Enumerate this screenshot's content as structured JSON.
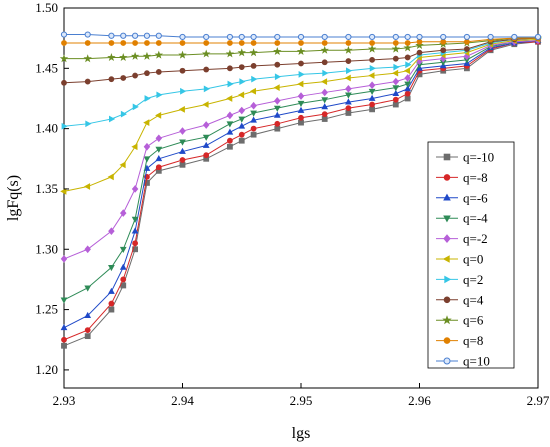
{
  "chart_data": {
    "type": "line",
    "title": "",
    "xlabel": "lgs",
    "ylabel": "lgFq(s)",
    "xlim": [
      2.93,
      2.97
    ],
    "ylim": [
      1.185,
      1.5
    ],
    "xticks": [
      "2.93",
      "2.94",
      "2.95",
      "2.96",
      "2.97"
    ],
    "yticks": [
      "1.20",
      "1.25",
      "1.30",
      "1.35",
      "1.40",
      "1.45",
      "1.50"
    ],
    "legend_position": "right",
    "series": [
      {
        "name": "q=-10",
        "color": "#6d6d6d",
        "marker": "square",
        "x": [
          2.93,
          2.932,
          2.934,
          2.935,
          2.936,
          2.937,
          2.938,
          2.94,
          2.942,
          2.944,
          2.945,
          2.946,
          2.948,
          2.95,
          2.952,
          2.954,
          2.956,
          2.958,
          2.959,
          2.96,
          2.962,
          2.964,
          2.966,
          2.968,
          2.97
        ],
        "y": [
          1.22,
          1.228,
          1.25,
          1.27,
          1.3,
          1.355,
          1.365,
          1.37,
          1.375,
          1.385,
          1.39,
          1.395,
          1.4,
          1.405,
          1.408,
          1.413,
          1.416,
          1.42,
          1.425,
          1.445,
          1.448,
          1.45,
          1.465,
          1.47,
          1.472
        ]
      },
      {
        "name": "q=-8",
        "color": "#d62728",
        "marker": "circle",
        "x": [
          2.93,
          2.932,
          2.934,
          2.935,
          2.936,
          2.937,
          2.938,
          2.94,
          2.942,
          2.944,
          2.945,
          2.946,
          2.948,
          2.95,
          2.952,
          2.954,
          2.956,
          2.958,
          2.959,
          2.96,
          2.962,
          2.964,
          2.966,
          2.968,
          2.97
        ],
        "y": [
          1.225,
          1.233,
          1.255,
          1.275,
          1.305,
          1.36,
          1.368,
          1.374,
          1.378,
          1.39,
          1.395,
          1.4,
          1.404,
          1.409,
          1.412,
          1.417,
          1.42,
          1.424,
          1.429,
          1.448,
          1.45,
          1.452,
          1.466,
          1.471,
          1.472
        ]
      },
      {
        "name": "q=-6",
        "color": "#1f49c8",
        "marker": "triangle-up",
        "x": [
          2.93,
          2.932,
          2.934,
          2.935,
          2.936,
          2.937,
          2.938,
          2.94,
          2.942,
          2.944,
          2.945,
          2.946,
          2.948,
          2.95,
          2.952,
          2.954,
          2.956,
          2.958,
          2.959,
          2.96,
          2.962,
          2.964,
          2.966,
          2.968,
          2.97
        ],
        "y": [
          1.235,
          1.245,
          1.265,
          1.285,
          1.315,
          1.367,
          1.375,
          1.381,
          1.386,
          1.397,
          1.402,
          1.407,
          1.411,
          1.415,
          1.418,
          1.422,
          1.425,
          1.429,
          1.433,
          1.45,
          1.452,
          1.454,
          1.467,
          1.471,
          1.473
        ]
      },
      {
        "name": "q=-4",
        "color": "#2e8b57",
        "marker": "triangle-down",
        "x": [
          2.93,
          2.932,
          2.934,
          2.935,
          2.936,
          2.937,
          2.938,
          2.94,
          2.942,
          2.944,
          2.945,
          2.946,
          2.948,
          2.95,
          2.952,
          2.954,
          2.956,
          2.958,
          2.959,
          2.96,
          2.962,
          2.964,
          2.966,
          2.968,
          2.97
        ],
        "y": [
          1.258,
          1.268,
          1.285,
          1.3,
          1.325,
          1.375,
          1.383,
          1.389,
          1.393,
          1.404,
          1.408,
          1.413,
          1.417,
          1.421,
          1.424,
          1.428,
          1.431,
          1.434,
          1.437,
          1.453,
          1.455,
          1.457,
          1.468,
          1.472,
          1.473
        ]
      },
      {
        "name": "q=-2",
        "color": "#b65fd8",
        "marker": "diamond",
        "x": [
          2.93,
          2.932,
          2.934,
          2.935,
          2.936,
          2.937,
          2.938,
          2.94,
          2.942,
          2.944,
          2.945,
          2.946,
          2.948,
          2.95,
          2.952,
          2.954,
          2.956,
          2.958,
          2.959,
          2.96,
          2.962,
          2.964,
          2.966,
          2.968,
          2.97
        ],
        "y": [
          1.292,
          1.3,
          1.315,
          1.33,
          1.35,
          1.385,
          1.392,
          1.398,
          1.403,
          1.411,
          1.415,
          1.419,
          1.423,
          1.427,
          1.43,
          1.433,
          1.436,
          1.439,
          1.442,
          1.456,
          1.458,
          1.46,
          1.469,
          1.472,
          1.473
        ]
      },
      {
        "name": "q=0",
        "color": "#c8b400",
        "marker": "triangle-left",
        "x": [
          2.93,
          2.932,
          2.934,
          2.935,
          2.936,
          2.937,
          2.938,
          2.94,
          2.942,
          2.944,
          2.945,
          2.946,
          2.948,
          2.95,
          2.952,
          2.954,
          2.956,
          2.958,
          2.959,
          2.96,
          2.962,
          2.964,
          2.966,
          2.968,
          2.97
        ],
        "y": [
          1.348,
          1.352,
          1.36,
          1.37,
          1.385,
          1.405,
          1.411,
          1.416,
          1.42,
          1.425,
          1.428,
          1.431,
          1.434,
          1.437,
          1.439,
          1.442,
          1.444,
          1.446,
          1.448,
          1.459,
          1.461,
          1.463,
          1.47,
          1.473,
          1.474
        ]
      },
      {
        "name": "q=2",
        "color": "#35c6e6",
        "marker": "triangle-right",
        "x": [
          2.93,
          2.932,
          2.934,
          2.935,
          2.936,
          2.937,
          2.938,
          2.94,
          2.942,
          2.944,
          2.945,
          2.946,
          2.948,
          2.95,
          2.952,
          2.954,
          2.956,
          2.958,
          2.959,
          2.96,
          2.962,
          2.964,
          2.966,
          2.968,
          2.97
        ],
        "y": [
          1.402,
          1.404,
          1.408,
          1.412,
          1.418,
          1.425,
          1.428,
          1.431,
          1.433,
          1.437,
          1.439,
          1.441,
          1.443,
          1.445,
          1.446,
          1.448,
          1.45,
          1.451,
          1.453,
          1.461,
          1.463,
          1.465,
          1.471,
          1.474,
          1.475
        ]
      },
      {
        "name": "q=4",
        "color": "#7b3f2e",
        "marker": "circle",
        "x": [
          2.93,
          2.932,
          2.934,
          2.935,
          2.936,
          2.937,
          2.938,
          2.94,
          2.942,
          2.944,
          2.945,
          2.946,
          2.948,
          2.95,
          2.952,
          2.954,
          2.956,
          2.958,
          2.959,
          2.96,
          2.962,
          2.964,
          2.966,
          2.968,
          2.97
        ],
        "y": [
          1.438,
          1.439,
          1.441,
          1.442,
          1.444,
          1.446,
          1.447,
          1.448,
          1.449,
          1.45,
          1.451,
          1.452,
          1.453,
          1.454,
          1.455,
          1.456,
          1.457,
          1.458,
          1.459,
          1.463,
          1.465,
          1.466,
          1.472,
          1.474,
          1.475
        ]
      },
      {
        "name": "q=6",
        "color": "#6b8e23",
        "marker": "star",
        "x": [
          2.93,
          2.932,
          2.934,
          2.935,
          2.936,
          2.937,
          2.938,
          2.94,
          2.942,
          2.944,
          2.945,
          2.946,
          2.948,
          2.95,
          2.952,
          2.954,
          2.956,
          2.958,
          2.959,
          2.96,
          2.962,
          2.964,
          2.966,
          2.968,
          2.97
        ],
        "y": [
          1.458,
          1.458,
          1.459,
          1.459,
          1.46,
          1.46,
          1.461,
          1.461,
          1.462,
          1.462,
          1.463,
          1.463,
          1.464,
          1.464,
          1.465,
          1.465,
          1.466,
          1.466,
          1.467,
          1.469,
          1.47,
          1.471,
          1.473,
          1.475,
          1.475
        ]
      },
      {
        "name": "q=8",
        "color": "#e08000",
        "marker": "circle",
        "x": [
          2.93,
          2.932,
          2.934,
          2.935,
          2.936,
          2.937,
          2.938,
          2.94,
          2.942,
          2.944,
          2.945,
          2.946,
          2.948,
          2.95,
          2.952,
          2.954,
          2.956,
          2.958,
          2.959,
          2.96,
          2.962,
          2.964,
          2.966,
          2.968,
          2.97
        ],
        "y": [
          1.471,
          1.471,
          1.471,
          1.471,
          1.471,
          1.471,
          1.471,
          1.471,
          1.471,
          1.471,
          1.471,
          1.471,
          1.471,
          1.471,
          1.471,
          1.471,
          1.471,
          1.471,
          1.471,
          1.472,
          1.472,
          1.472,
          1.474,
          1.475,
          1.475
        ]
      },
      {
        "name": "q=10",
        "color": "#4a7fd0",
        "marker": "circle-half",
        "x": [
          2.93,
          2.932,
          2.934,
          2.935,
          2.936,
          2.937,
          2.938,
          2.94,
          2.942,
          2.944,
          2.945,
          2.946,
          2.948,
          2.95,
          2.952,
          2.954,
          2.956,
          2.958,
          2.959,
          2.96,
          2.962,
          2.964,
          2.966,
          2.968,
          2.97
        ],
        "y": [
          1.478,
          1.478,
          1.477,
          1.477,
          1.477,
          1.477,
          1.477,
          1.476,
          1.476,
          1.476,
          1.476,
          1.476,
          1.476,
          1.476,
          1.476,
          1.476,
          1.476,
          1.476,
          1.476,
          1.476,
          1.476,
          1.476,
          1.476,
          1.476,
          1.476
        ]
      }
    ]
  }
}
